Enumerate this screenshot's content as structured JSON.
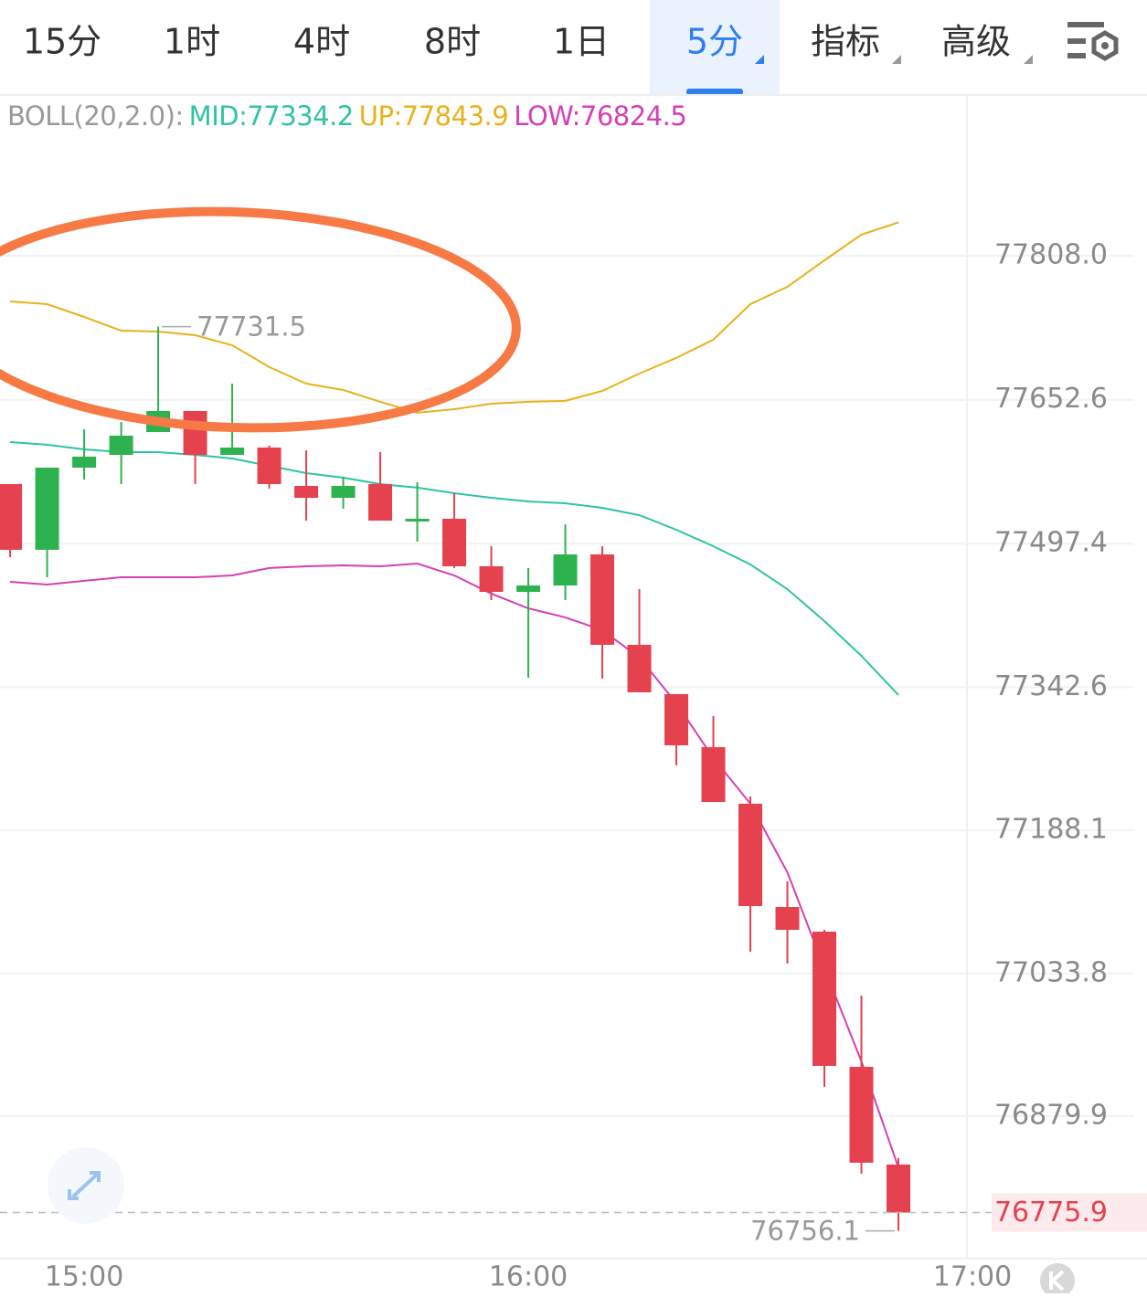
{
  "tabs": {
    "items": [
      "15分",
      "1时",
      "4时",
      "8时",
      "1日",
      "5分",
      "指标",
      "高级"
    ],
    "active": 5
  },
  "chart_data": {
    "type": "candlestick",
    "indicator_label": "BOLL(20,2.0):",
    "x": [
      "14:50",
      "14:55",
      "15:00",
      "15:05",
      "15:10",
      "15:15",
      "15:20",
      "15:25",
      "15:30",
      "15:35",
      "15:40",
      "15:45",
      "15:50",
      "15:55",
      "16:00",
      "16:05",
      "16:10",
      "16:15",
      "16:20",
      "16:25",
      "16:30",
      "16:35",
      "16:40",
      "16:45",
      "16:50"
    ],
    "open": [
      77561.7,
      77490.8,
      77579.4,
      77593.2,
      77617.8,
      77640.5,
      77593.2,
      77601.1,
      77559.7,
      77546.9,
      77561.7,
      77521.3,
      77524.3,
      77473.0,
      77445.4,
      77452.3,
      77485.8,
      77388.3,
      77335.1,
      77277.9,
      77216.9,
      77105.5,
      77078.9,
      76933.1,
      76827.7
    ],
    "high": [
      77561.7,
      77579.4,
      77620.8,
      77628.7,
      77731.5,
      77640.5,
      77670.1,
      77603.1,
      77598.1,
      77569.6,
      77596.2,
      77563.7,
      77551.8,
      77494.7,
      77471.1,
      77518.3,
      77494.7,
      77448.4,
      77335.1,
      77311.4,
      77224.7,
      77133.1,
      77080.9,
      77010.0,
      76834.6
    ],
    "low": [
      77482.9,
      77461.2,
      77566.6,
      77561.7,
      77617.8,
      77561.7,
      77593.2,
      77556.8,
      77522.3,
      77535.1,
      77522.3,
      77499.6,
      77471.1,
      77436.6,
      77352.8,
      77436.6,
      77351.8,
      77337.1,
      77258.2,
      77218.8,
      77057.3,
      77044.5,
      76911.5,
      76817.8,
      76756.1
    ],
    "close": [
      77490.8,
      77579.4,
      77591.3,
      77613.9,
      77640.5,
      77593.2,
      77601.1,
      77561.7,
      77546.9,
      77559.7,
      77522.3,
      77524.3,
      77473.0,
      77445.4,
      77452.3,
      77485.8,
      77388.3,
      77337.1,
      77279.9,
      77218.8,
      77106.5,
      77080.9,
      76934.1,
      76829.7,
      76775.9
    ],
    "up_color": "#2eb24f",
    "down_color": "#e5414f",
    "series": [
      {
        "name": "MID:77334.2",
        "color": "#2ec4a6",
        "values": [
          77607.0,
          77604.1,
          77599.1,
          77596.2,
          77596.2,
          77593.2,
          77589.3,
          77581.4,
          77573.5,
          77568.6,
          77561.7,
          77557.8,
          77551.8,
          77546.9,
          77543.0,
          77541.0,
          77536.1,
          77528.2,
          77512.4,
          77494.7,
          77475.0,
          77448.4,
          77413.9,
          77376.5,
          77334.2
        ]
      },
      {
        "name": "UP:77843.9",
        "color": "#e8b21c",
        "values": [
          77758.7,
          77755.8,
          77742.0,
          77727.2,
          77726.2,
          77722.3,
          77711.4,
          77687.9,
          77670.1,
          77663.2,
          77650.4,
          77638.6,
          77642.5,
          77648.4,
          77650.4,
          77651.4,
          77662.2,
          77680.9,
          77697.7,
          77717.4,
          77755.8,
          77774.5,
          77803.1,
          77830.7,
          77843.9
        ]
      },
      {
        "name": "LOW:76824.5",
        "color": "#d63fb4",
        "values": [
          77456.3,
          77453.3,
          77457.3,
          77461.2,
          77461.2,
          77461.2,
          77463.2,
          77471.1,
          77473.0,
          77474.0,
          77473.0,
          77476.0,
          77463.2,
          77443.5,
          77427.7,
          77417.9,
          77404.1,
          77374.6,
          77325.3,
          77266.2,
          77216.9,
          77143.0,
          77039.5,
          76939.0,
          76824.5
        ]
      }
    ],
    "xlim": [
      "14:49",
      "17:00"
    ],
    "xticks": [
      "15:00",
      "16:00",
      "17:00"
    ],
    "ylim": [
      76726.2,
      77980.4
    ],
    "yticks": [
      {
        "value": 77808,
        "label": "77808.0"
      },
      77652.6,
      77497.4,
      77342.6,
      77188.1,
      77033.8,
      76879.9
    ],
    "max_label": 77731.5,
    "min_label": 76756.1,
    "last_price": 76775.9,
    "grid": true
  }
}
